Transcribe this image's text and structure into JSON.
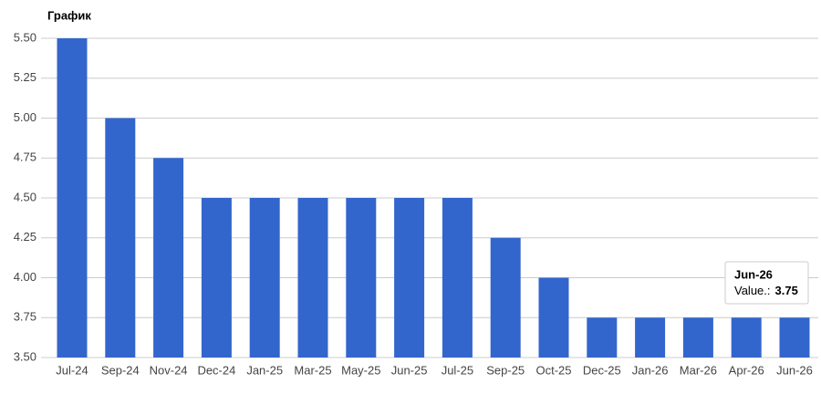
{
  "chart_data": {
    "type": "bar",
    "title": "График",
    "categories": [
      "Jul-24",
      "Sep-24",
      "Nov-24",
      "Dec-24",
      "Jan-25",
      "Mar-25",
      "May-25",
      "Jun-25",
      "Jul-25",
      "Sep-25",
      "Oct-25",
      "Dec-25",
      "Jan-26",
      "Mar-26",
      "Apr-26",
      "Jun-26"
    ],
    "values": [
      5.5,
      5.0,
      4.75,
      4.5,
      4.5,
      4.5,
      4.5,
      4.5,
      4.5,
      4.25,
      4.0,
      3.75,
      3.75,
      3.75,
      3.75,
      3.75
    ],
    "color": "#3366cc",
    "ylim": [
      3.5,
      5.5
    ],
    "yticks": [
      {
        "value": 3.5,
        "label": "3.50"
      },
      {
        "value": 3.75,
        "label": "3.75"
      },
      {
        "value": 4.0,
        "label": "4.00"
      },
      {
        "value": 4.25,
        "label": "4.25"
      },
      {
        "value": 4.5,
        "label": "4.50"
      },
      {
        "value": 4.75,
        "label": "4.75"
      },
      {
        "value": 5.0,
        "label": "5.00"
      },
      {
        "value": 5.25,
        "label": "5.25"
      },
      {
        "value": 5.5,
        "label": "5.50"
      }
    ],
    "grid": true,
    "tooltip": {
      "title": "Jun-26",
      "label": "Value.:",
      "value": "3.75"
    }
  }
}
